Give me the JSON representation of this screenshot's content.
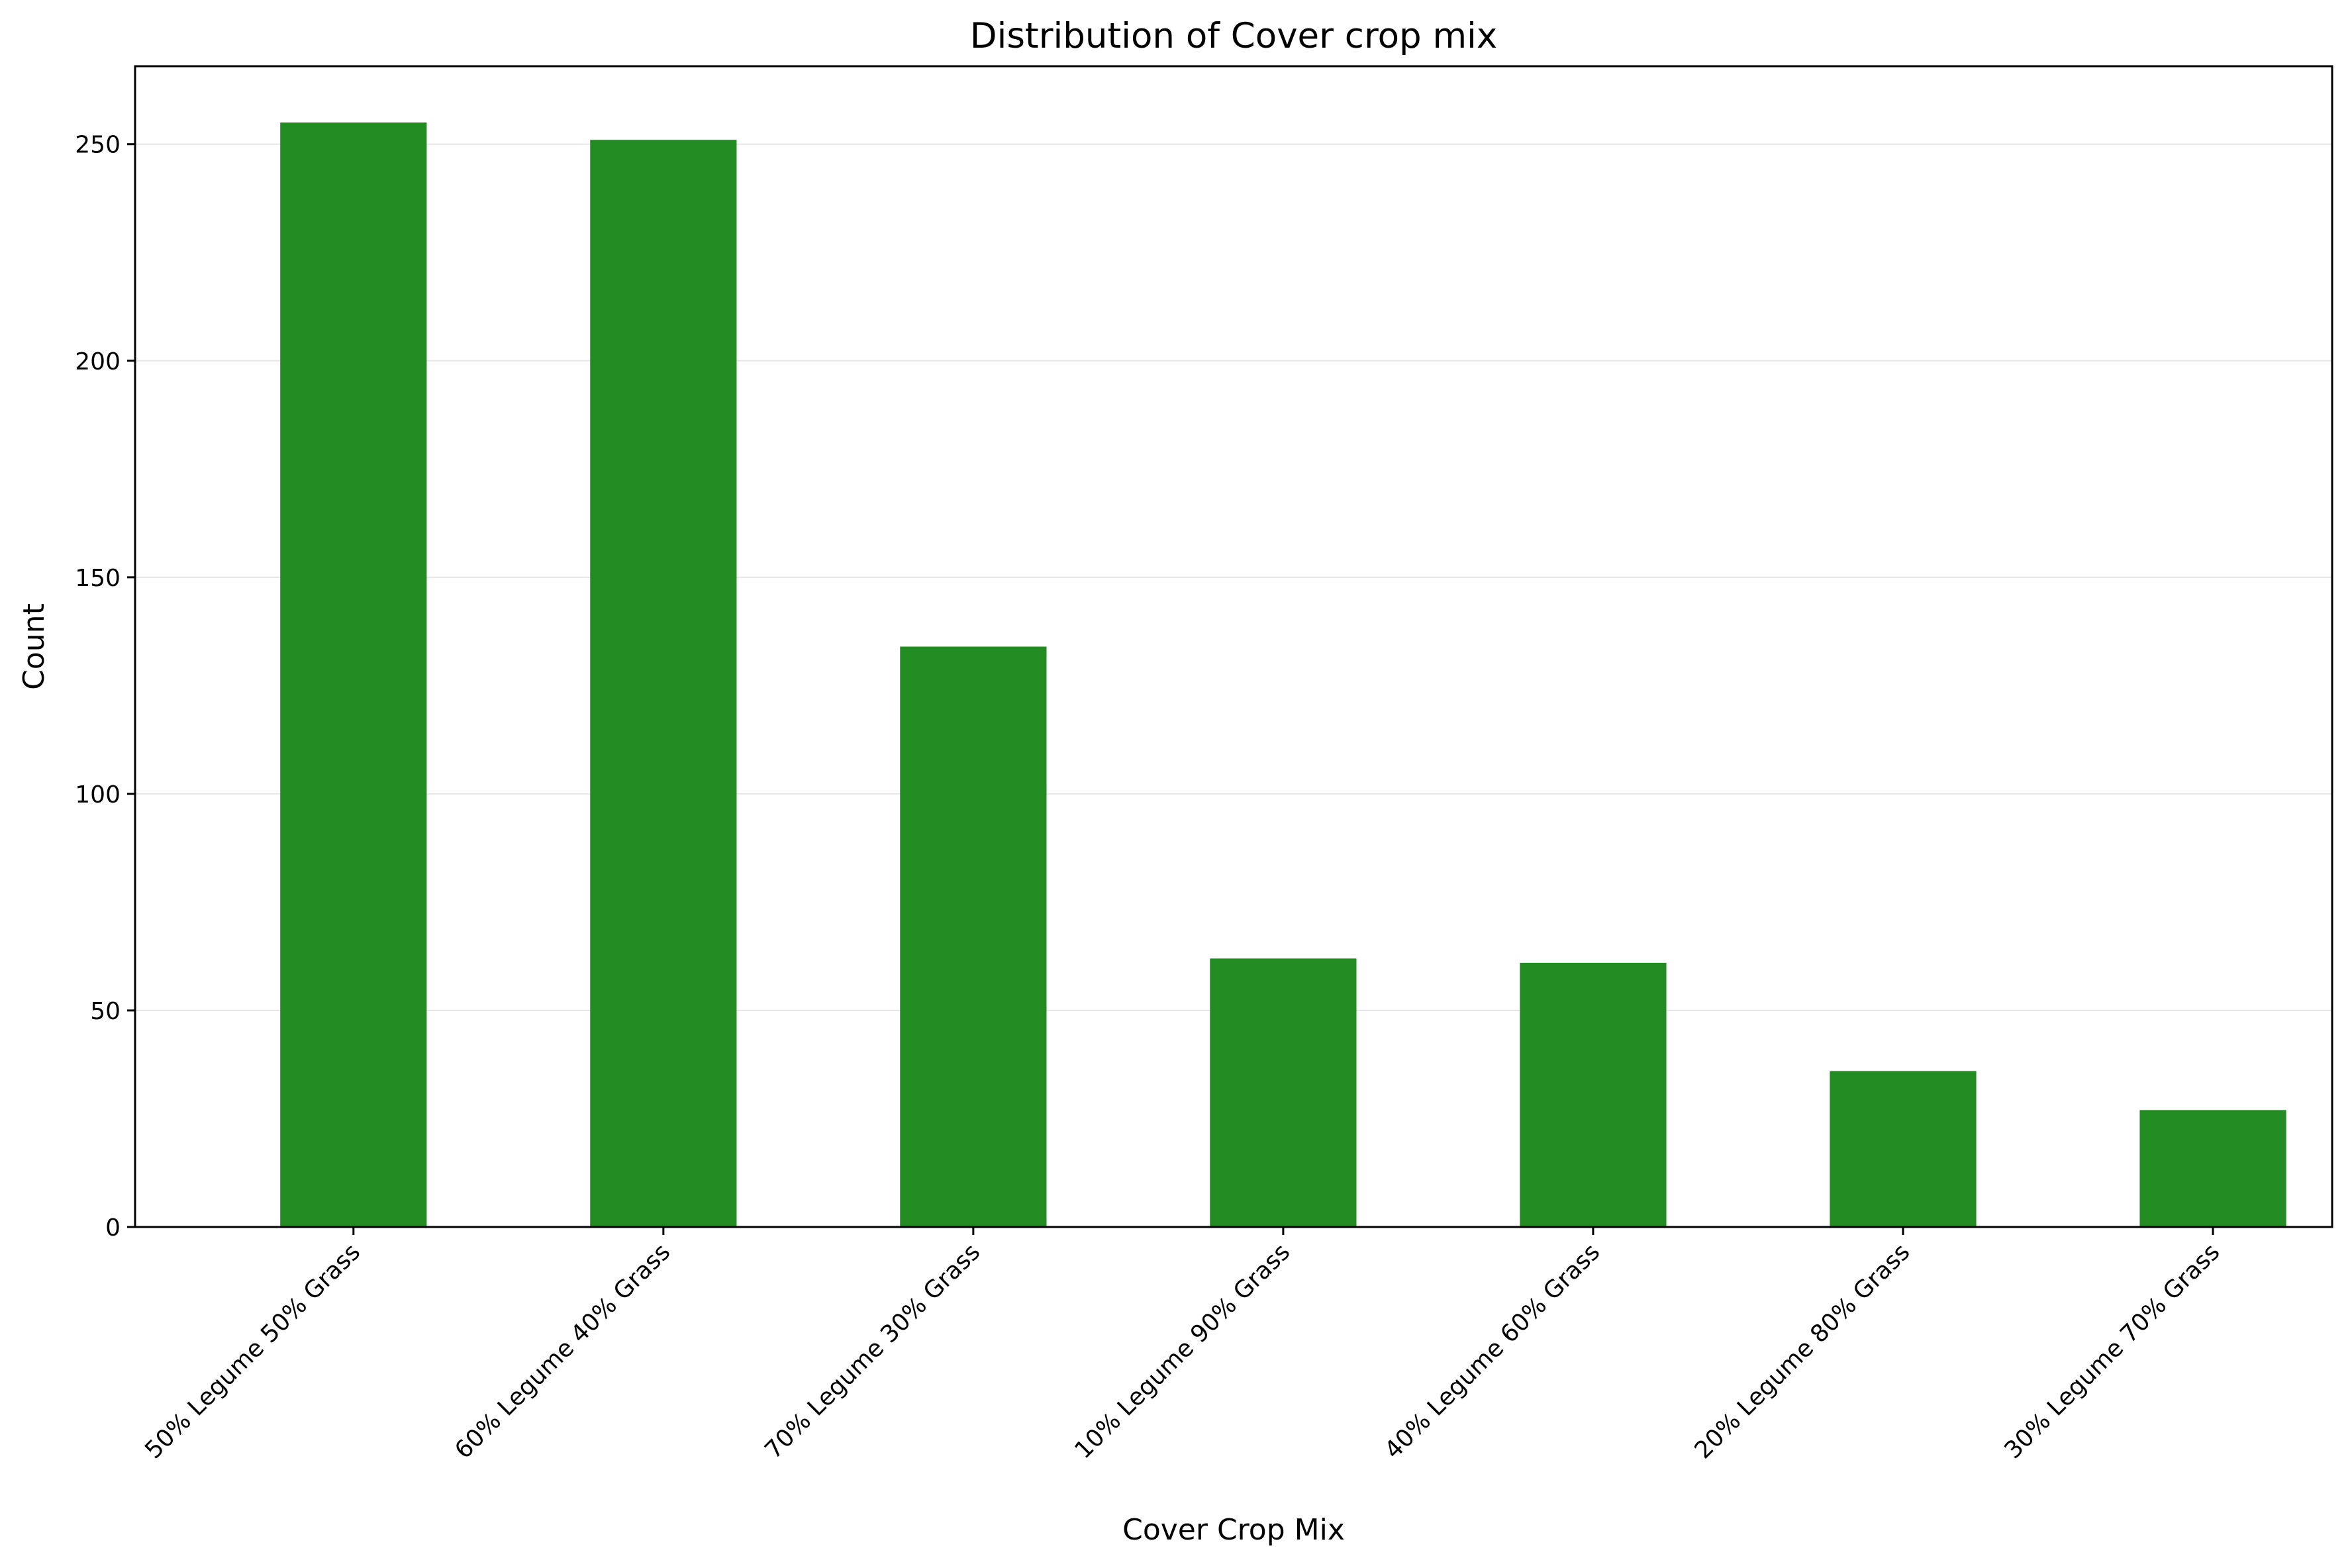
{
  "chart_data": {
    "type": "bar",
    "title": "Distribution of Cover crop mix",
    "xlabel": "Cover Crop Mix",
    "ylabel": "Count",
    "categories": [
      "50% Legume 50% Grass",
      "60% Legume 40% Grass",
      "70% Legume 30% Grass",
      "10% Legume 90% Grass",
      "40% Legume 60% Grass",
      "20% Legume 80% Grass",
      "30% Legume 70% Grass"
    ],
    "values": [
      255,
      251,
      134,
      62,
      61,
      36,
      27
    ],
    "ylim": [
      0,
      268
    ],
    "yticks": [
      0,
      50,
      100,
      150,
      200,
      250
    ],
    "bar_color": "#228b22",
    "grid": "y-major",
    "grid_color": "#e6e6e6",
    "legend": "none"
  }
}
